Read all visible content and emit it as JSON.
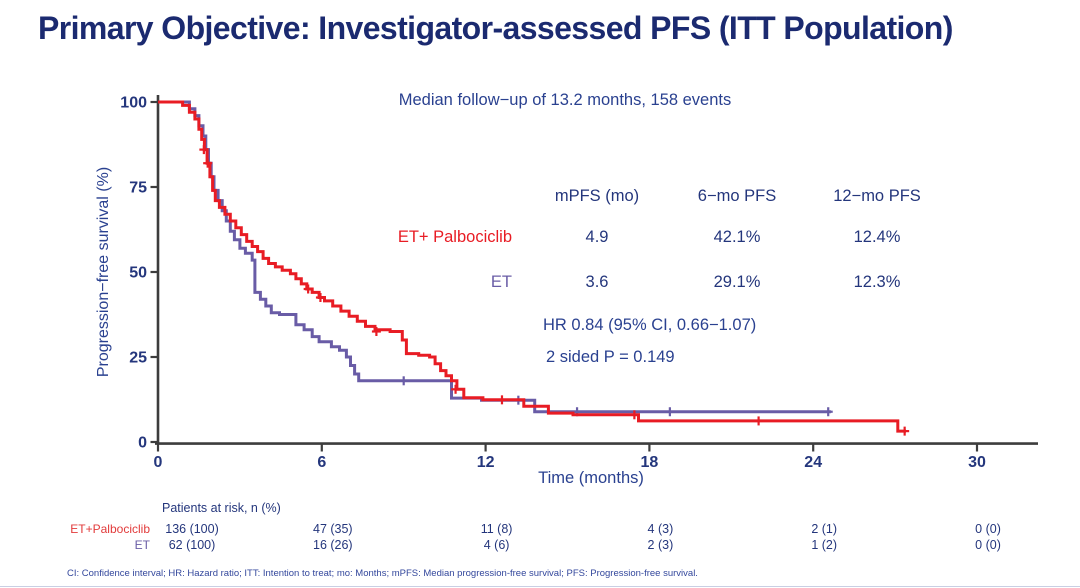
{
  "title": "Primary Objective: Investigator-assessed PFS (ITT Population)",
  "annotation": "Median follow−up of 13.2 months, 158 events",
  "summary_table": {
    "headers": [
      "mPFS (mo)",
      "6−mo PFS",
      "12−mo PFS"
    ],
    "rows": [
      {
        "name": "ET+ Palbociclib",
        "color": "#e81c24",
        "values": [
          "4.9",
          "42.1%",
          "12.4%"
        ]
      },
      {
        "name": "ET",
        "color": "#695ca6",
        "values": [
          "3.6",
          "29.1%",
          "12.3%"
        ]
      }
    ]
  },
  "stats": {
    "hazard_ratio": "HR 0.84 (95% CI, 0.66−1.07)",
    "p_value": "2 sided P = 0.149"
  },
  "axes": {
    "y": {
      "label": "Progression−free survival (%)",
      "ticks": [
        0,
        25,
        50,
        75,
        100
      ],
      "min": 0,
      "max": 100
    },
    "x": {
      "label": "Time (months)",
      "ticks": [
        0,
        6,
        12,
        18,
        24,
        30
      ],
      "min": 0,
      "max": 30
    }
  },
  "at_risk": {
    "title": "Patients at risk, n (%)",
    "months": [
      0,
      6,
      12,
      18,
      24,
      30
    ],
    "rows": [
      {
        "name": "ET+Palbociclib",
        "color": "#e23b3b",
        "counts": [
          "136 (100)",
          "47 (35)",
          "11 (8)",
          "4 (3)",
          "2 (1)",
          "0 (0)"
        ]
      },
      {
        "name": "ET",
        "color": "#695ca6",
        "counts": [
          "62 (100)",
          "16 (26)",
          "4 (6)",
          "2 (3)",
          "1 (2)",
          "0 (0)"
        ]
      }
    ]
  },
  "footnote": "CI: Confidence interval; HR: Hazard ratio; ITT: Intention to treat; mo: Months; mPFS: Median progression-free survival; PFS: Progression-free survival.",
  "colors": {
    "title_navy": "#1b2a70",
    "text_navy": "#2a4190",
    "value_navy": "#24367c",
    "axis_gray": "#3d3d3d",
    "palbociclib_red": "#e81c24",
    "et_purple": "#695ca6"
  },
  "chart_data": {
    "type": "line",
    "subtype": "kaplan-meier-step",
    "title": "Investigator-assessed PFS (ITT Population)",
    "xlabel": "Time (months)",
    "ylabel": "Progression-free survival (%)",
    "xlim": [
      0,
      30
    ],
    "ylim": [
      0,
      100
    ],
    "legend_position": "table-right",
    "grid": false,
    "series": [
      {
        "name": "ET+ Palbociclib",
        "color": "#e81c24",
        "n": 136,
        "median_pfs_mo": 4.9,
        "pfs_6mo_pct": 42.1,
        "pfs_12mo_pct": 12.4,
        "end_month": 27.4,
        "points": [
          [
            0,
            100
          ],
          [
            0.9,
            99
          ],
          [
            1.15,
            97
          ],
          [
            1.35,
            95
          ],
          [
            1.5,
            92
          ],
          [
            1.6,
            89
          ],
          [
            1.7,
            86
          ],
          [
            1.8,
            82
          ],
          [
            1.9,
            78
          ],
          [
            2.0,
            74
          ],
          [
            2.1,
            71
          ],
          [
            2.25,
            69
          ],
          [
            2.45,
            67
          ],
          [
            2.65,
            65
          ],
          [
            2.85,
            63
          ],
          [
            3.05,
            61
          ],
          [
            3.25,
            59
          ],
          [
            3.45,
            57.5
          ],
          [
            3.65,
            56
          ],
          [
            3.85,
            54
          ],
          [
            4.05,
            52.5
          ],
          [
            4.3,
            51.5
          ],
          [
            4.55,
            50.5
          ],
          [
            4.85,
            49.5
          ],
          [
            5.05,
            48
          ],
          [
            5.25,
            46.5
          ],
          [
            5.45,
            45
          ],
          [
            5.65,
            44
          ],
          [
            5.9,
            42.5
          ],
          [
            6.1,
            41.5
          ],
          [
            6.4,
            40
          ],
          [
            6.7,
            38.5
          ],
          [
            7.0,
            37
          ],
          [
            7.3,
            35.5
          ],
          [
            7.6,
            34
          ],
          [
            7.95,
            33
          ],
          [
            8.5,
            32.5
          ],
          [
            8.95,
            30
          ],
          [
            9.1,
            26
          ],
          [
            9.55,
            25.5
          ],
          [
            9.95,
            25
          ],
          [
            10.15,
            23
          ],
          [
            10.35,
            21
          ],
          [
            10.55,
            19.5
          ],
          [
            10.75,
            18
          ],
          [
            10.95,
            15.5
          ],
          [
            11.2,
            13
          ],
          [
            11.9,
            12.4
          ],
          [
            13.4,
            10.5
          ],
          [
            14.3,
            8.5
          ],
          [
            15.2,
            8
          ],
          [
            17.6,
            6.2
          ],
          [
            27.1,
            3.2
          ]
        ],
        "censor_marks": [
          [
            1.68,
            86
          ],
          [
            1.82,
            82
          ],
          [
            5.5,
            45
          ],
          [
            5.95,
            42.5
          ],
          [
            8.0,
            32.5
          ],
          [
            10.9,
            15.5
          ],
          [
            12.6,
            12.4
          ],
          [
            17.45,
            8
          ],
          [
            22.0,
            6.2
          ],
          [
            27.35,
            3.2
          ]
        ]
      },
      {
        "name": "ET",
        "color": "#695ca6",
        "n": 62,
        "median_pfs_mo": 3.6,
        "pfs_6mo_pct": 29.1,
        "pfs_12mo_pct": 12.3,
        "end_month": 24.65,
        "points": [
          [
            0,
            100
          ],
          [
            1.15,
            98
          ],
          [
            1.35,
            96
          ],
          [
            1.5,
            93
          ],
          [
            1.65,
            90
          ],
          [
            1.75,
            86
          ],
          [
            1.85,
            82
          ],
          [
            1.95,
            78
          ],
          [
            2.05,
            74
          ],
          [
            2.2,
            71
          ],
          [
            2.35,
            68
          ],
          [
            2.5,
            65
          ],
          [
            2.65,
            62
          ],
          [
            2.8,
            59.5
          ],
          [
            3.0,
            57
          ],
          [
            3.2,
            55.5
          ],
          [
            3.45,
            53.5
          ],
          [
            3.55,
            44
          ],
          [
            3.75,
            42
          ],
          [
            3.95,
            40
          ],
          [
            4.15,
            38
          ],
          [
            4.45,
            37.5
          ],
          [
            5.05,
            34.5
          ],
          [
            5.35,
            33
          ],
          [
            5.65,
            31
          ],
          [
            5.9,
            29.5
          ],
          [
            6.35,
            28
          ],
          [
            6.65,
            27
          ],
          [
            6.9,
            25
          ],
          [
            7.05,
            22.5
          ],
          [
            7.2,
            20
          ],
          [
            7.35,
            18
          ],
          [
            10.75,
            12.9
          ],
          [
            11.85,
            12.3
          ],
          [
            13.8,
            8.9
          ]
        ],
        "censor_marks": [
          [
            9.0,
            18
          ],
          [
            13.2,
            12.3
          ],
          [
            15.35,
            8.9
          ],
          [
            18.75,
            8.9
          ],
          [
            24.55,
            8.9
          ]
        ]
      }
    ]
  }
}
